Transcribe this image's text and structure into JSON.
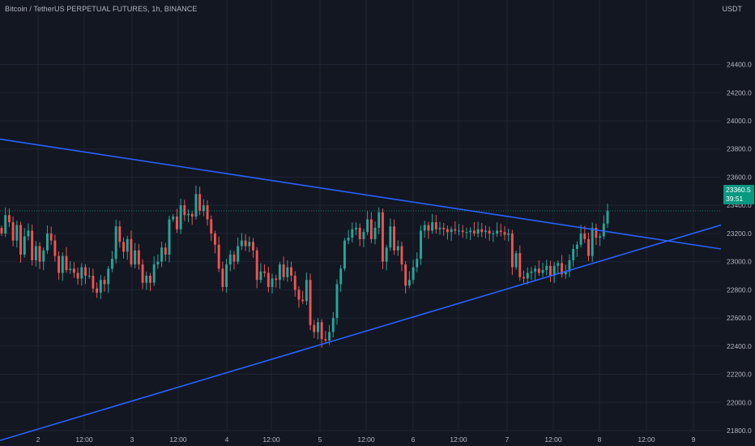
{
  "header": {
    "title": "Bitcoin / TetherUS PERPETUAL FUTURES, 1h, BINANCE",
    "currency": "USDT"
  },
  "last_price": {
    "price": "23360.5",
    "countdown": "39:51"
  },
  "colors": {
    "background": "#131722",
    "grid": "#1f2433",
    "up": "#26a69a",
    "down": "#ef5350",
    "trendline": "#2962ff",
    "text": "#b2b5be",
    "price_tag": "#089981"
  },
  "chart_data": {
    "type": "candlestick",
    "title": "Bitcoin / TetherUS PERPETUAL FUTURES, 1h, BINANCE",
    "ylim": [
      21700,
      24750
    ],
    "y_ticks": [
      21800,
      22000,
      22200,
      22400,
      22600,
      22800,
      23000,
      23200,
      23400,
      23600,
      23800,
      24000,
      24200,
      24400
    ],
    "y_tick_labels": [
      "21800.0",
      "22000.0",
      "22200.0",
      "22400.0",
      "22600.0",
      "22800.0",
      "23000.0",
      "23200.0",
      "23400.0",
      "23600.0",
      "23800.0",
      "24000.0",
      "24200.0",
      "24400.0"
    ],
    "x_tick_labels": [
      "2",
      "12:00",
      "3",
      "12:00",
      "4",
      "12:00",
      "5",
      "12:00",
      "6",
      "12:00",
      "7",
      "12:00",
      "8",
      "12:00",
      "9"
    ],
    "grid": true,
    "closes": [
      23200,
      23330,
      23280,
      23150,
      23260,
      23050,
      23180,
      23220,
      23010,
      23110,
      23000,
      23080,
      23200,
      23150,
      23040,
      22920,
      23040,
      22940,
      22950,
      22920,
      22880,
      22960,
      22900,
      22900,
      22810,
      22780,
      22870,
      22840,
      22950,
      23020,
      23250,
      23140,
      23070,
      23160,
      22980,
      23080,
      22980,
      22850,
      22900,
      22850,
      22980,
      23000,
      23100,
      23050,
      23300,
      23320,
      23230,
      23400,
      23330,
      23340,
      23320,
      23480,
      23360,
      23400,
      23300,
      23200,
      23120,
      22950,
      22820,
      22980,
      23050,
      23000,
      23110,
      23150,
      23110,
      23140,
      23080,
      22870,
      22930,
      22920,
      22820,
      22880,
      22870,
      22980,
      22890,
      22960,
      22900,
      22800,
      22730,
      22720,
      22870,
      22550,
      22500,
      22570,
      22450,
      22440,
      22500,
      22600,
      22840,
      22950,
      23150,
      23170,
      23230,
      23240,
      23160,
      23210,
      23300,
      23160,
      23240,
      23350,
      23000,
      23100,
      23250,
      23080,
      23110,
      22980,
      22830,
      22870,
      22960,
      23020,
      23220,
      23260,
      23220,
      23280,
      23230,
      23240,
      23230,
      23210,
      23230,
      23220,
      23220,
      23210,
      23210,
      23220,
      23200,
      23230,
      23210,
      23220,
      23200,
      23200,
      23220,
      23210,
      23190,
      23200,
      22960,
      23060,
      22890,
      22880,
      22920,
      22930,
      22950,
      22920,
      22940,
      22970,
      22900,
      22970,
      22990,
      22910,
      22930,
      23010,
      23090,
      23120,
      23200,
      23160,
      23040,
      23240,
      23170,
      23180,
      23270,
      23360.5
    ],
    "trendlines": [
      {
        "from": [
          "start",
          23870
        ],
        "to": [
          "end",
          23090
        ]
      },
      {
        "from": [
          "start",
          21730
        ],
        "to": [
          "end",
          23260
        ]
      }
    ]
  }
}
